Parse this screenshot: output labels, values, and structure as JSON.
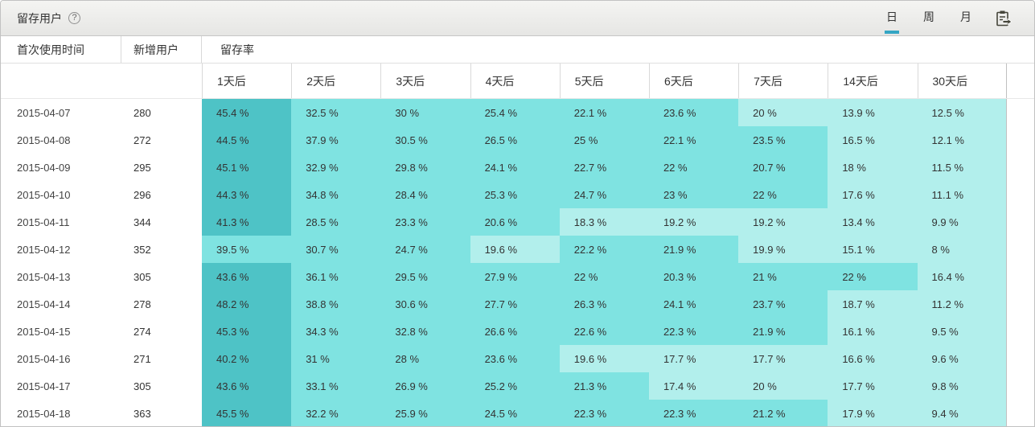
{
  "title_bar": {
    "title": "留存用户",
    "help_glyph": "?",
    "tabs": [
      {
        "label": "日",
        "selected": true
      },
      {
        "label": "周",
        "selected": false
      },
      {
        "label": "月",
        "selected": false
      }
    ]
  },
  "header": {
    "col_time": "首次使用时间",
    "col_new_users": "新增用户",
    "col_retention": "留存率"
  },
  "colors": {
    "dark": "#4ec3c6",
    "mid": "#7fe3e1",
    "light": "#b2efec",
    "accent_underline": "#35a6c4"
  },
  "chart_data": {
    "type": "heatmap",
    "title": "留存用户",
    "columns": [
      "1天后",
      "2天后",
      "3天后",
      "4天后",
      "5天后",
      "6天后",
      "7天后",
      "14天后",
      "30天后"
    ],
    "value_unit": "%",
    "shade_thresholds": {
      "dark_min": 40,
      "light_max": 20
    },
    "rows": [
      {
        "date": "2015-04-07",
        "new_users": 280,
        "retention_pct": [
          45.4,
          32.5,
          30,
          25.4,
          22.1,
          23.6,
          20,
          13.9,
          12.5
        ]
      },
      {
        "date": "2015-04-08",
        "new_users": 272,
        "retention_pct": [
          44.5,
          37.9,
          30.5,
          26.5,
          25,
          22.1,
          23.5,
          16.5,
          12.1
        ]
      },
      {
        "date": "2015-04-09",
        "new_users": 295,
        "retention_pct": [
          45.1,
          32.9,
          29.8,
          24.1,
          22.7,
          22,
          20.7,
          18,
          11.5
        ]
      },
      {
        "date": "2015-04-10",
        "new_users": 296,
        "retention_pct": [
          44.3,
          34.8,
          28.4,
          25.3,
          24.7,
          23,
          22,
          17.6,
          11.1
        ]
      },
      {
        "date": "2015-04-11",
        "new_users": 344,
        "retention_pct": [
          41.3,
          28.5,
          23.3,
          20.6,
          18.3,
          19.2,
          19.2,
          13.4,
          9.9
        ]
      },
      {
        "date": "2015-04-12",
        "new_users": 352,
        "retention_pct": [
          39.5,
          30.7,
          24.7,
          19.6,
          22.2,
          21.9,
          19.9,
          15.1,
          8
        ]
      },
      {
        "date": "2015-04-13",
        "new_users": 305,
        "retention_pct": [
          43.6,
          36.1,
          29.5,
          27.9,
          22,
          20.3,
          21,
          22,
          16.4
        ]
      },
      {
        "date": "2015-04-14",
        "new_users": 278,
        "retention_pct": [
          48.2,
          38.8,
          30.6,
          27.7,
          26.3,
          24.1,
          23.7,
          18.7,
          11.2
        ]
      },
      {
        "date": "2015-04-15",
        "new_users": 274,
        "retention_pct": [
          45.3,
          34.3,
          32.8,
          26.6,
          22.6,
          22.3,
          21.9,
          16.1,
          9.5
        ]
      },
      {
        "date": "2015-04-16",
        "new_users": 271,
        "retention_pct": [
          40.2,
          31,
          28,
          23.6,
          19.6,
          17.7,
          17.7,
          16.6,
          9.6
        ]
      },
      {
        "date": "2015-04-17",
        "new_users": 305,
        "retention_pct": [
          43.6,
          33.1,
          26.9,
          25.2,
          21.3,
          17.4,
          20,
          17.7,
          9.8
        ]
      },
      {
        "date": "2015-04-18",
        "new_users": 363,
        "retention_pct": [
          45.5,
          32.2,
          25.9,
          24.5,
          22.3,
          22.3,
          21.2,
          17.9,
          9.4
        ]
      }
    ]
  }
}
